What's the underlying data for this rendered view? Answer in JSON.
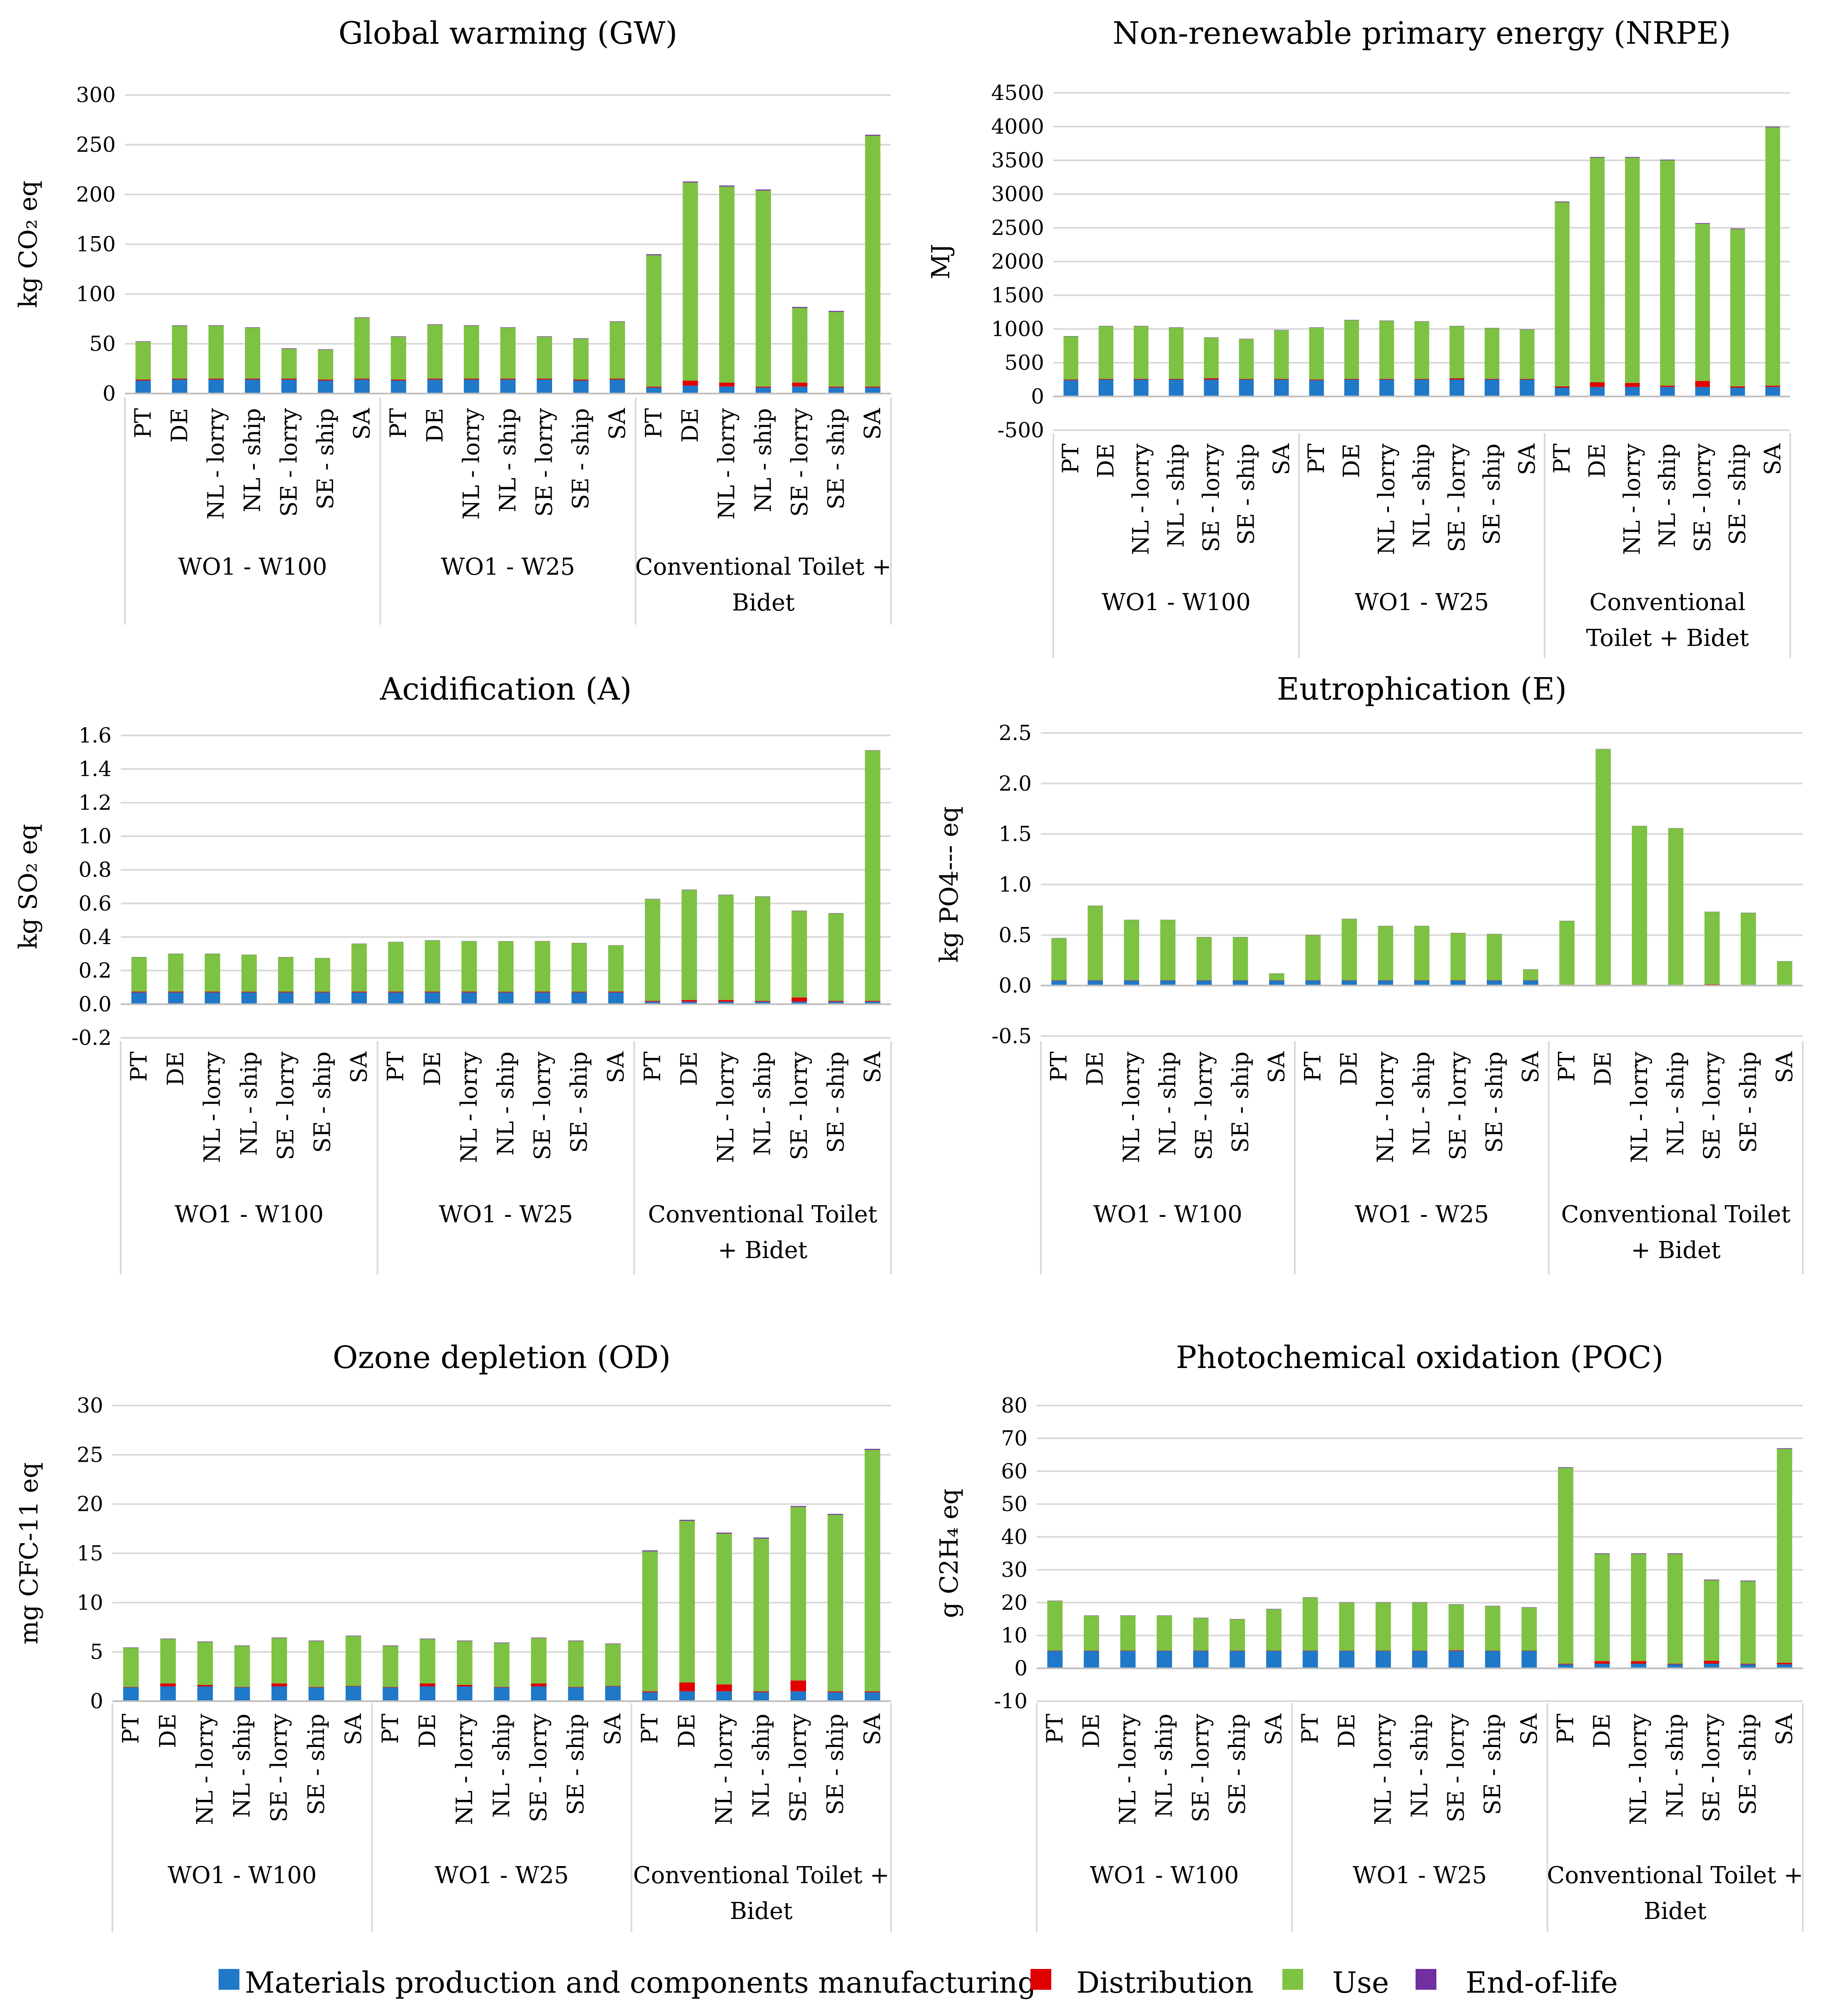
{
  "colors": {
    "materials": "#1f78c8",
    "distribution": "#e00000",
    "use": "#7dc242",
    "eol": "#7030a0"
  },
  "legend": [
    {
      "key": "materials",
      "label": "Materials production and components manufacturing"
    },
    {
      "key": "distribution",
      "label": "Distribution"
    },
    {
      "key": "use",
      "label": "Use"
    },
    {
      "key": "eol",
      "label": "End-of-life"
    }
  ],
  "chart_data": [
    {
      "type": "bar",
      "stacked": true,
      "title": "Global warming (GW)",
      "ylabel": "kg CO₂ eq",
      "ylim": [
        0,
        300
      ],
      "yticks": [
        "0",
        "50",
        "100",
        "150",
        "200",
        "250",
        "300"
      ],
      "categories": [
        "PT",
        "DE",
        "NL - lorry",
        "NL - ship",
        "SE - lorry",
        "SE - ship",
        "SA"
      ],
      "groups": [
        {
          "label": "WO1 - W100",
          "stacks": [
            [
              13,
              1,
              38,
              0.5
            ],
            [
              14,
              1,
              53,
              0.5
            ],
            [
              14,
              1,
              53,
              0.5
            ],
            [
              14,
              1,
              51,
              0.5
            ],
            [
              14,
              1,
              30,
              0.5
            ],
            [
              13,
              1,
              30,
              0.5
            ],
            [
              14,
              1,
              61,
              0.5
            ]
          ]
        },
        {
          "label": "WO1 - W25",
          "stacks": [
            [
              13,
              1,
              43,
              0.5
            ],
            [
              14,
              1,
              54,
              0.5
            ],
            [
              14,
              1,
              53,
              0.5
            ],
            [
              14,
              1,
              51,
              0.5
            ],
            [
              14,
              1,
              42,
              0.5
            ],
            [
              13,
              1,
              41,
              0.5
            ],
            [
              14,
              1,
              57,
              0.5
            ]
          ]
        },
        {
          "label": "Conventional Toilet + Bidet",
          "stacks": [
            [
              6,
              1,
              132,
              1
            ],
            [
              8,
              5,
              199,
              1
            ],
            [
              7,
              4,
              197,
              1
            ],
            [
              6,
              1,
              197,
              1
            ],
            [
              7,
              4,
              75,
              1
            ],
            [
              6,
              1,
              75,
              1
            ],
            [
              6,
              1,
              252,
              1
            ]
          ]
        }
      ]
    },
    {
      "type": "bar",
      "stacked": true,
      "title": "Non-renewable primary energy (NRPE)",
      "ylabel": "MJ",
      "ylim": [
        -500,
        4500
      ],
      "yticks": [
        "-500",
        "0",
        "500",
        "1000",
        "1500",
        "2000",
        "2500",
        "3000",
        "3500",
        "4000",
        "4500"
      ],
      "categories": [
        "PT",
        "DE",
        "NL - lorry",
        "NL - ship",
        "SE - lorry",
        "SE - ship",
        "SA"
      ],
      "groups": [
        {
          "label": "WO1 - W100",
          "stacks": [
            [
              240,
              10,
              640,
              5
            ],
            [
              250,
              10,
              780,
              5
            ],
            [
              250,
              10,
              780,
              5
            ],
            [
              250,
              10,
              760,
              5
            ],
            [
              250,
              20,
              600,
              5
            ],
            [
              250,
              10,
              590,
              5
            ],
            [
              250,
              10,
              720,
              5
            ]
          ]
        },
        {
          "label": "WO1 - W25",
          "stacks": [
            [
              240,
              10,
              770,
              5
            ],
            [
              250,
              10,
              870,
              5
            ],
            [
              250,
              10,
              860,
              5
            ],
            [
              250,
              10,
              850,
              5
            ],
            [
              250,
              20,
              770,
              5
            ],
            [
              250,
              10,
              750,
              5
            ],
            [
              250,
              10,
              730,
              5
            ]
          ]
        },
        {
          "label": "Conventional Toilet + Bidet",
          "stacks": [
            [
              130,
              20,
              2730,
              10
            ],
            [
              140,
              70,
              3330,
              10
            ],
            [
              140,
              60,
              3340,
              10
            ],
            [
              140,
              20,
              3340,
              10
            ],
            [
              140,
              90,
              2330,
              10
            ],
            [
              130,
              20,
              2330,
              10
            ],
            [
              140,
              20,
              3830,
              10
            ]
          ]
        }
      ]
    },
    {
      "type": "bar",
      "stacked": true,
      "title": "Acidification (A)",
      "ylabel": "kg SO₂ eq",
      "ylim": [
        -0.2,
        1.6
      ],
      "yticks": [
        "-0.2",
        "0.0",
        "0.2",
        "0.4",
        "0.6",
        "0.8",
        "1.0",
        "1.2",
        "1.4",
        "1.6"
      ],
      "categories": [
        "PT",
        "DE",
        "NL - lorry",
        "NL - ship",
        "SE - lorry",
        "SE - ship",
        "SA"
      ],
      "groups": [
        {
          "label": "WO1 - W100",
          "stacks": [
            [
              0.07,
              0.005,
              0.205,
              0.001
            ],
            [
              0.07,
              0.005,
              0.225,
              0.001
            ],
            [
              0.07,
              0.005,
              0.225,
              0.001
            ],
            [
              0.07,
              0.004,
              0.22,
              0.001
            ],
            [
              0.07,
              0.005,
              0.205,
              0.001
            ],
            [
              0.07,
              0.004,
              0.2,
              0.001
            ],
            [
              0.07,
              0.005,
              0.285,
              0.001
            ]
          ]
        },
        {
          "label": "WO1 - W25",
          "stacks": [
            [
              0.07,
              0.005,
              0.295,
              0.001
            ],
            [
              0.07,
              0.005,
              0.305,
              0.001
            ],
            [
              0.07,
              0.005,
              0.3,
              0.001
            ],
            [
              0.07,
              0.004,
              0.3,
              0.001
            ],
            [
              0.07,
              0.005,
              0.3,
              0.001
            ],
            [
              0.07,
              0.004,
              0.29,
              0.001
            ],
            [
              0.07,
              0.005,
              0.275,
              0.001
            ]
          ]
        },
        {
          "label": "Conventional Toilet + Bidet",
          "stacks": [
            [
              0.015,
              0.005,
              0.605,
              0.002
            ],
            [
              0.015,
              0.01,
              0.655,
              0.002
            ],
            [
              0.015,
              0.01,
              0.625,
              0.002
            ],
            [
              0.015,
              0.005,
              0.62,
              0.002
            ],
            [
              0.015,
              0.025,
              0.515,
              0.002
            ],
            [
              0.015,
              0.005,
              0.52,
              0.002
            ],
            [
              0.015,
              0.005,
              1.49,
              0.002
            ]
          ]
        }
      ]
    },
    {
      "type": "bar",
      "stacked": true,
      "title": "Eutrophication (E)",
      "ylabel": "kg PO4--- eq",
      "ylim": [
        -0.5,
        2.5
      ],
      "yticks": [
        "-0.5",
        "0.0",
        "0.5",
        "1.0",
        "1.5",
        "2.0",
        "2.5"
      ],
      "categories": [
        "PT",
        "DE",
        "NL - lorry",
        "NL - ship",
        "SE - lorry",
        "SE - ship",
        "SA"
      ],
      "groups": [
        {
          "label": "WO1 - W100",
          "stacks": [
            [
              0.05,
              0.003,
              0.417,
              0.001
            ],
            [
              0.05,
              0.003,
              0.737,
              0.001
            ],
            [
              0.05,
              0.003,
              0.597,
              0.001
            ],
            [
              0.05,
              0.003,
              0.597,
              0.001
            ],
            [
              0.05,
              0.003,
              0.427,
              0.001
            ],
            [
              0.05,
              0.003,
              0.427,
              0.001
            ],
            [
              0.05,
              0.003,
              0.067,
              0.001
            ]
          ]
        },
        {
          "label": "WO1 - W25",
          "stacks": [
            [
              0.05,
              0.003,
              0.447,
              0.001
            ],
            [
              0.05,
              0.003,
              0.607,
              0.001
            ],
            [
              0.05,
              0.003,
              0.537,
              0.001
            ],
            [
              0.05,
              0.003,
              0.537,
              0.001
            ],
            [
              0.05,
              0.003,
              0.467,
              0.001
            ],
            [
              0.05,
              0.003,
              0.457,
              0.001
            ],
            [
              0.05,
              0.003,
              0.107,
              0.001
            ]
          ]
        },
        {
          "label": "Conventional Toilet + Bidet",
          "stacks": [
            [
              0.005,
              0.002,
              0.633,
              0.001
            ],
            [
              0.005,
              0.005,
              2.33,
              0.001
            ],
            [
              0.005,
              0.004,
              1.57,
              0.001
            ],
            [
              0.005,
              0.002,
              1.55,
              0.001
            ],
            [
              0.005,
              0.008,
              0.717,
              0.001
            ],
            [
              0.005,
              0.002,
              0.713,
              0.001
            ],
            [
              0.005,
              0.002,
              0.233,
              0.001
            ]
          ]
        }
      ]
    },
    {
      "type": "bar",
      "stacked": true,
      "title": "Ozone depletion (OD)",
      "ylabel": "mg CFC-11 eq",
      "ylim": [
        0,
        30
      ],
      "yticks": [
        "0",
        "5",
        "10",
        "15",
        "20",
        "25",
        "30"
      ],
      "categories": [
        "PT",
        "DE",
        "NL - lorry",
        "NL - ship",
        "SE - lorry",
        "SE - ship",
        "SA"
      ],
      "groups": [
        {
          "label": "WO1 - W100",
          "stacks": [
            [
              1.4,
              0.05,
              3.95,
              0.05
            ],
            [
              1.5,
              0.3,
              4.5,
              0.05
            ],
            [
              1.5,
              0.15,
              4.35,
              0.05
            ],
            [
              1.4,
              0.05,
              4.15,
              0.05
            ],
            [
              1.5,
              0.3,
              4.6,
              0.05
            ],
            [
              1.4,
              0.05,
              4.65,
              0.05
            ],
            [
              1.5,
              0.05,
              5.05,
              0.05
            ]
          ]
        },
        {
          "label": "WO1 - W25",
          "stacks": [
            [
              1.4,
              0.05,
              4.15,
              0.05
            ],
            [
              1.5,
              0.3,
              4.5,
              0.05
            ],
            [
              1.5,
              0.15,
              4.45,
              0.05
            ],
            [
              1.4,
              0.05,
              4.45,
              0.05
            ],
            [
              1.5,
              0.3,
              4.6,
              0.05
            ],
            [
              1.4,
              0.05,
              4.65,
              0.05
            ],
            [
              1.5,
              0.05,
              4.25,
              0.05
            ]
          ]
        },
        {
          "label": "Conventional Toilet + Bidet",
          "stacks": [
            [
              0.9,
              0.1,
              14.2,
              0.1
            ],
            [
              1.0,
              0.9,
              16.4,
              0.1
            ],
            [
              1.0,
              0.7,
              15.3,
              0.1
            ],
            [
              0.9,
              0.1,
              15.5,
              0.1
            ],
            [
              1.0,
              1.1,
              17.6,
              0.1
            ],
            [
              0.9,
              0.1,
              17.9,
              0.1
            ],
            [
              0.9,
              0.1,
              24.5,
              0.1
            ]
          ]
        }
      ]
    },
    {
      "type": "bar",
      "stacked": true,
      "title": "Photochemical oxidation (POC)",
      "ylabel": "g C2H₄ eq",
      "ylim": [
        -10,
        80
      ],
      "yticks": [
        "-10",
        "0",
        "10",
        "20",
        "30",
        "40",
        "50",
        "60",
        "70",
        "80"
      ],
      "categories": [
        "PT",
        "DE",
        "NL - lorry",
        "NL - ship",
        "SE - lorry",
        "SE - ship",
        "SA"
      ],
      "groups": [
        {
          "label": "WO1 - W100",
          "stacks": [
            [
              5.3,
              0.1,
              15.1,
              0.1
            ],
            [
              5.3,
              0.1,
              10.6,
              0.1
            ],
            [
              5.3,
              0.1,
              10.6,
              0.1
            ],
            [
              5.3,
              0.1,
              10.6,
              0.1
            ],
            [
              5.3,
              0.1,
              9.9,
              0.1
            ],
            [
              5.3,
              0.1,
              9.5,
              0.1
            ],
            [
              5.3,
              0.1,
              12.6,
              0.1
            ]
          ]
        },
        {
          "label": "WO1 - W25",
          "stacks": [
            [
              5.3,
              0.1,
              16.1,
              0.1
            ],
            [
              5.3,
              0.1,
              14.6,
              0.1
            ],
            [
              5.3,
              0.1,
              14.6,
              0.1
            ],
            [
              5.3,
              0.1,
              14.6,
              0.1
            ],
            [
              5.3,
              0.2,
              13.9,
              0.1
            ],
            [
              5.3,
              0.1,
              13.5,
              0.1
            ],
            [
              5.3,
              0.1,
              13.1,
              0.1
            ]
          ]
        },
        {
          "label": "Conventional Toilet + Bidet",
          "stacks": [
            [
              1.2,
              0.2,
              59.6,
              0.2
            ],
            [
              1.4,
              0.8,
              32.6,
              0.2
            ],
            [
              1.4,
              0.8,
              32.6,
              0.2
            ],
            [
              1.2,
              0.2,
              33.4,
              0.2
            ],
            [
              1.4,
              0.9,
              24.5,
              0.2
            ],
            [
              1.2,
              0.2,
              25.1,
              0.2
            ],
            [
              1.2,
              0.5,
              65.1,
              0.2
            ]
          ]
        }
      ]
    }
  ]
}
